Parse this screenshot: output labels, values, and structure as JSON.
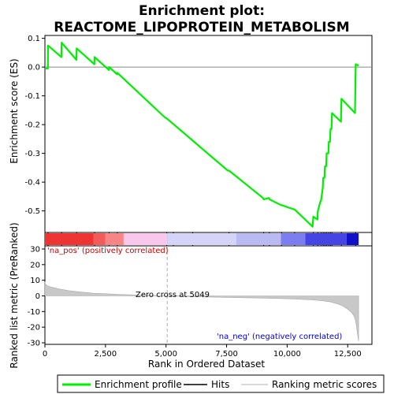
{
  "chart_data": {
    "type": "line",
    "title": "Enrichment plot:",
    "subtitle": "REACTOME_LIPOPROTEIN_METABOLISM",
    "xlabel": "Rank in Ordered Dataset",
    "xlim": [
      0,
      13500
    ],
    "x_ticks": [
      0,
      2500,
      5000,
      7500,
      10000,
      12500
    ],
    "x_tick_labels": [
      "0",
      "2,500",
      "5,000",
      "7,500",
      "10,000",
      "12,500"
    ],
    "es_panel": {
      "ylabel": "Enrichment score (ES)",
      "ylim": [
        -0.575,
        0.11
      ],
      "y_ticks": [
        0.1,
        0.0,
        -0.1,
        -0.2,
        -0.3,
        -0.4,
        -0.5
      ],
      "y_tick_labels": [
        "0.1",
        "0.0",
        "-0.1",
        "-0.2",
        "-0.3",
        "-0.4",
        "-0.5"
      ],
      "series": [
        {
          "color": "#00ee00",
          "x": [
            0,
            120,
            130,
            680,
            690,
            1300,
            1310,
            2040,
            2050,
            2640,
            2650,
            2980,
            2990,
            4950,
            5050,
            7550,
            7600,
            9000,
            9030,
            9250,
            9270,
            9750,
            9770,
            10290,
            10310,
            11050,
            11080,
            11250,
            11270,
            11380,
            11400,
            11470,
            11490,
            11540,
            11560,
            11610,
            11630,
            11700,
            11720,
            11770,
            11790,
            11830,
            11850,
            12220,
            12240,
            12800,
            12830,
            12950
          ],
          "y": [
            -0.005,
            -0.005,
            0.075,
            0.035,
            0.085,
            0.025,
            0.065,
            0.01,
            0.035,
            -0.01,
            0.0,
            -0.025,
            -0.02,
            -0.175,
            -0.18,
            -0.36,
            -0.36,
            -0.455,
            -0.46,
            -0.455,
            -0.46,
            -0.48,
            -0.48,
            -0.495,
            -0.495,
            -0.555,
            -0.52,
            -0.53,
            -0.5,
            -0.465,
            -0.465,
            -0.42,
            -0.385,
            -0.385,
            -0.345,
            -0.345,
            -0.3,
            -0.3,
            -0.26,
            -0.26,
            -0.215,
            -0.215,
            -0.16,
            -0.19,
            -0.11,
            -0.16,
            0.01,
            0.005
          ]
        }
      ]
    },
    "hits": [
      130,
      690,
      1310,
      2050,
      2650,
      2990,
      5030,
      5300,
      6100,
      7600,
      9030,
      9270,
      9770,
      10310,
      11080,
      11270,
      11400,
      11490,
      11560,
      11630,
      11720,
      11790,
      11850,
      12240,
      12830
    ],
    "ranked_metric_panel": {
      "ylabel": "Ranked list metric (PreRanked)",
      "ylim": [
        -31,
        32
      ],
      "y_ticks": [
        30,
        20,
        10,
        0,
        -10,
        -20,
        -30
      ],
      "y_tick_labels": [
        "30",
        "20",
        "10",
        "0",
        "-10",
        "-20",
        "-30"
      ],
      "zero_cross_rank": 5049,
      "zero_cross_label": "Zero cross at 5049",
      "pos_label": "'na_pos' (positively correlated)",
      "neg_label": "'na_neg' (negatively correlated)",
      "pos_label_color": "#cc0000",
      "neg_label_color": "#0000cc",
      "x": [
        0,
        20,
        100,
        300,
        600,
        1000,
        1500,
        2000,
        3000,
        4000,
        5049,
        6000,
        7000,
        8000,
        9000,
        10000,
        10500,
        11000,
        11500,
        11800,
        12100,
        12300,
        12500,
        12650,
        12750,
        12800,
        12850,
        12900,
        12950
      ],
      "y": [
        9,
        7.5,
        6.5,
        5.5,
        4.4,
        3.3,
        2.4,
        1.7,
        1.0,
        0.4,
        0,
        -0.5,
        -0.8,
        -1.1,
        -1.4,
        -1.8,
        -2.1,
        -2.5,
        -3.2,
        -3.9,
        -5.2,
        -6.5,
        -8.5,
        -10.5,
        -12.5,
        -14.5,
        -18,
        -24,
        -29
      ]
    },
    "colorbar": {
      "segments": [
        {
          "x0": 0,
          "x1": 2000,
          "color": "#ef3434"
        },
        {
          "x0": 2000,
          "x1": 2500,
          "color": "#f35a5a"
        },
        {
          "x0": 2500,
          "x1": 3250,
          "color": "#f78585"
        },
        {
          "x0": 3250,
          "x1": 5049,
          "color": "#f9c6ec"
        },
        {
          "x0": 5049,
          "x1": 7900,
          "color": "#d4d4f8"
        },
        {
          "x0": 7900,
          "x1": 9750,
          "color": "#b9b9f3"
        },
        {
          "x0": 9750,
          "x1": 10750,
          "color": "#7d7df2"
        },
        {
          "x0": 10750,
          "x1": 12450,
          "color": "#4545e4"
        },
        {
          "x0": 12450,
          "x1": 12950,
          "color": "#1010c8"
        }
      ]
    },
    "legend": {
      "items": [
        {
          "label": "Enrichment profile",
          "color": "#00ee00",
          "style": "thick"
        },
        {
          "label": "Hits",
          "color": "#000000",
          "style": "thin"
        },
        {
          "label": "Ranking metric scores",
          "color": "#cccccc",
          "style": "thin"
        }
      ]
    }
  }
}
